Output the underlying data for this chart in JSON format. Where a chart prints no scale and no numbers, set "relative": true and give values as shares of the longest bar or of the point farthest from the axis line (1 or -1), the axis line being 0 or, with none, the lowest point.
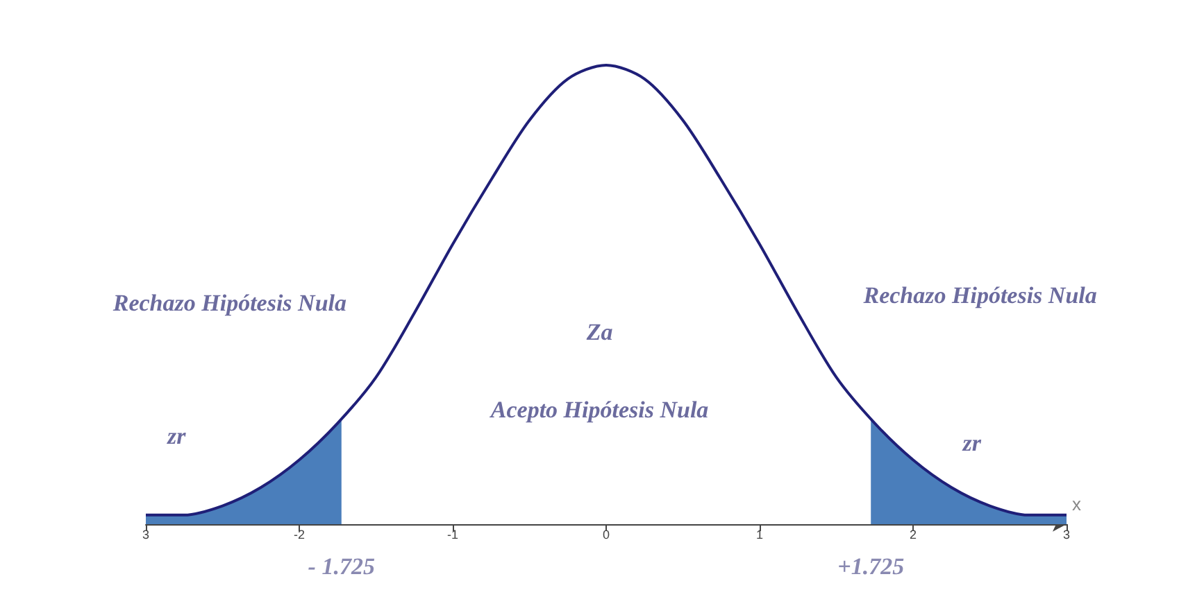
{
  "chart_data": {
    "type": "line",
    "relative": true,
    "xlabel": "x",
    "x": [
      -3,
      -2.75,
      -2.5,
      -2.25,
      -2,
      -1.75,
      -1.5,
      -1.25,
      -1,
      -0.75,
      -0.5,
      -0.25,
      0,
      0.25,
      0.5,
      0.75,
      1,
      1.25,
      1.5,
      1.75,
      2,
      2.25,
      2.5,
      2.75,
      3
    ],
    "series": [
      {
        "type": "area",
        "color": "#4a7ebb",
        "x": [
          -3,
          -2.75,
          -2.5,
          -2.25,
          -2,
          -1.75,
          -1.725
        ],
        "values": [
          0.02,
          0.02,
          0.04,
          0.08,
          0.14,
          0.22,
          0.23
        ]
      },
      {
        "type": "area",
        "color": "#4a7ebb",
        "x": [
          1.725,
          1.75,
          2,
          2.25,
          2.5,
          2.75,
          3
        ],
        "values": [
          0.23,
          0.22,
          0.14,
          0.08,
          0.04,
          0.02,
          0.02
        ]
      },
      {
        "color": "#1f1f78",
        "values": [
          0.02,
          0.02,
          0.04,
          0.08,
          0.14,
          0.22,
          0.32,
          0.46,
          0.61,
          0.75,
          0.88,
          0.97,
          1,
          0.97,
          0.88,
          0.75,
          0.61,
          0.46,
          0.32,
          0.22,
          0.14,
          0.08,
          0.04,
          0.02,
          0.02
        ]
      }
    ],
    "xlim": [
      -3,
      3
    ],
    "xticks": [
      {
        "value": -3,
        "label": "3"
      },
      -2,
      -1,
      0,
      1,
      2,
      3
    ],
    "annotations": [
      "Rechazo Hipótesis Nula",
      "Rechazo Hipótesis Nula",
      "Za",
      "Acepto Hipótesis Nula",
      "zr",
      "zr",
      {
        "text": "- 1.725",
        "x": -1.725,
        "y": 0
      },
      {
        "text": "+1.725",
        "x": 1.725,
        "y": 0
      }
    ],
    "grid": false,
    "marker": "none",
    "line_style": "solid"
  }
}
